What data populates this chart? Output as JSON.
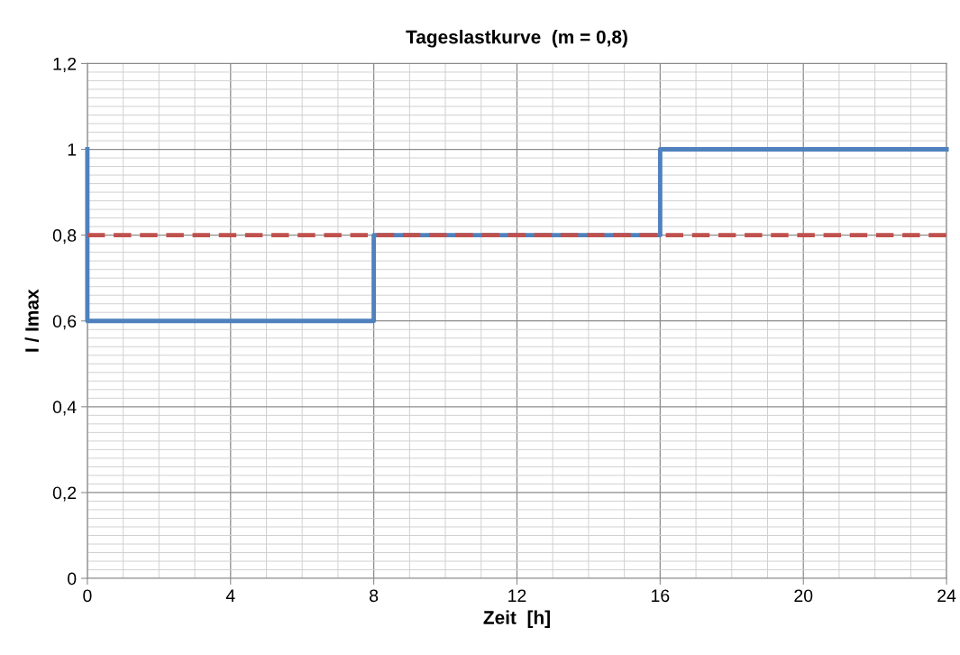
{
  "chart_data": {
    "type": "line",
    "title": "Tageslastkurve  (m = 0,8)",
    "xlabel": "Zeit  [h]",
    "ylabel": "I / Imax",
    "series": [
      {
        "color": "#4f81bd",
        "x": [
          0,
          0,
          8,
          8,
          16,
          16,
          24
        ],
        "values": [
          1,
          0.6,
          0.6,
          0.8,
          0.8,
          1,
          1
        ]
      }
    ],
    "ref_lines": [
      {
        "axis": "y",
        "value": 0.8,
        "color": "#c0504d",
        "line_style": "dashed"
      }
    ],
    "xlim": [
      0,
      24
    ],
    "xticks": [
      0,
      4,
      8,
      12,
      16,
      20,
      24
    ],
    "ylim": [
      0,
      1.2
    ],
    "yticks": [
      0,
      {
        "value": 0.2,
        "label": "0,2"
      },
      {
        "value": 0.4,
        "label": "0,4"
      },
      {
        "value": 0.6,
        "label": "0,6"
      },
      {
        "value": 0.8,
        "label": "0,8"
      },
      1,
      {
        "value": 1.2,
        "label": "1,2"
      }
    ],
    "grid": true,
    "line_style": "solid",
    "marker": "none"
  }
}
